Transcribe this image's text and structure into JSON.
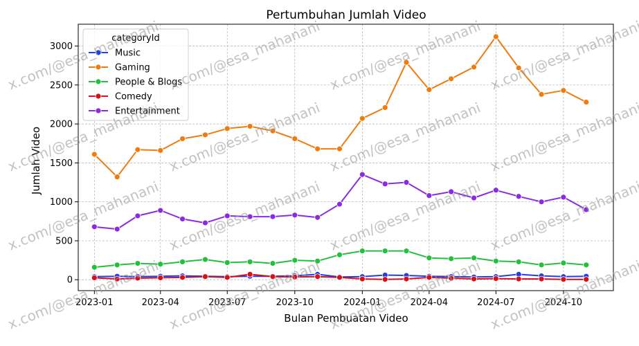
{
  "chart_data": {
    "type": "line",
    "title": "Pertumbuhan Jumlah Video",
    "xlabel": "Bulan Pembuatan Video",
    "ylabel": "Jumlah Video",
    "x": [
      "2023-01",
      "2023-02",
      "2023-03",
      "2023-04",
      "2023-05",
      "2023-06",
      "2023-07",
      "2023-08",
      "2023-09",
      "2023-10",
      "2023-11",
      "2023-12",
      "2024-01",
      "2024-02",
      "2024-03",
      "2024-04",
      "2024-05",
      "2024-06",
      "2024-07",
      "2024-08",
      "2024-09",
      "2024-10",
      "2024-11"
    ],
    "x_ticks": [
      "2023-01",
      "2023-04",
      "2023-07",
      "2023-10",
      "2024-01",
      "2024-04",
      "2024-07",
      "2024-10"
    ],
    "y_ticks": [
      0,
      500,
      1000,
      1500,
      2000,
      2500,
      3000
    ],
    "ylim": [
      -140,
      3280
    ],
    "xlim": [
      "2022-12-10",
      "2024-12-08"
    ],
    "grid": true,
    "legend": {
      "title": "categoryId",
      "placement": "top-left"
    },
    "series": [
      {
        "name": "Music",
        "color": "#1f3fe0",
        "values": [
          40,
          45,
          40,
          45,
          50,
          45,
          40,
          45,
          45,
          50,
          70,
          35,
          40,
          60,
          55,
          45,
          40,
          35,
          40,
          70,
          50,
          40,
          45
        ]
      },
      {
        "name": "Gaming",
        "color": "#f07b0f",
        "values": [
          1610,
          1320,
          1670,
          1660,
          1810,
          1860,
          1940,
          1970,
          1910,
          1810,
          1680,
          1680,
          2070,
          2210,
          2790,
          2440,
          2580,
          2730,
          3120,
          2720,
          2380,
          2430,
          2280
        ]
      },
      {
        "name": "People & Blogs",
        "color": "#22c03c",
        "values": [
          160,
          190,
          210,
          200,
          230,
          260,
          220,
          230,
          210,
          250,
          240,
          320,
          370,
          370,
          370,
          280,
          270,
          280,
          240,
          230,
          190,
          215,
          190
        ]
      },
      {
        "name": "Comedy",
        "color": "#d60f1a",
        "values": [
          25,
          10,
          20,
          25,
          30,
          40,
          30,
          70,
          40,
          35,
          40,
          30,
          10,
          5,
          10,
          30,
          20,
          10,
          15,
          10,
          10,
          5,
          5
        ]
      },
      {
        "name": "Entertainment",
        "color": "#8a2be2",
        "values": [
          680,
          650,
          820,
          890,
          780,
          730,
          820,
          810,
          810,
          830,
          800,
          970,
          1350,
          1230,
          1250,
          1080,
          1130,
          1050,
          1150,
          1070,
          1000,
          1060,
          900
        ]
      }
    ],
    "watermark": "x.com/@esa_mahanani"
  }
}
